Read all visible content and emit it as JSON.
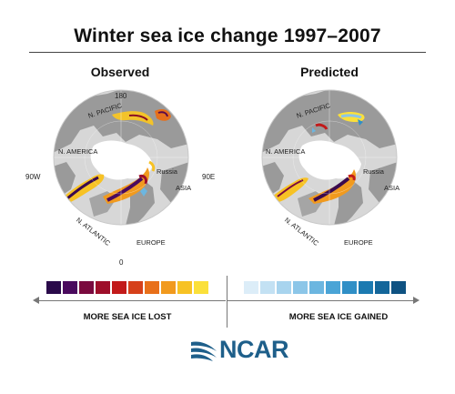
{
  "title": "Winter sea ice change 1997–2007",
  "panels": {
    "observed": {
      "title": "Observed",
      "labels": {
        "top": "180",
        "left": "90W",
        "right": "90E",
        "bottom": "0",
        "n_pacific": "N. PACIFIC",
        "n_america": "N. AMERICA",
        "russia": "Russia",
        "asia": "ASIA",
        "n_atlantic": "N. ATLANTIC",
        "europe": "EUROPE"
      }
    },
    "predicted": {
      "title": "Predicted",
      "labels": {
        "n_pacific": "N. PACIFIC",
        "n_america": "N. AMERICA",
        "russia": "Russia",
        "asia": "ASIA",
        "n_atlantic": "N. ATLANTIC",
        "europe": "EUROPE"
      }
    }
  },
  "legend": {
    "lost_label": "MORE SEA ICE LOST",
    "gained_label": "MORE SEA ICE GAINED",
    "lost_colors": [
      "#2a0a4a",
      "#4a0a5e",
      "#7a0a3e",
      "#9e0f2a",
      "#c21a1a",
      "#d6401a",
      "#e8701a",
      "#f19a1e",
      "#f7c224",
      "#fbe03a"
    ],
    "gained_colors": [
      "#dcedf8",
      "#c3e1f3",
      "#a8d4ee",
      "#8cc6e8",
      "#6cb6e0",
      "#4aa4d6",
      "#2f8fc6",
      "#1c7ab1",
      "#14669a",
      "#0f5282"
    ]
  },
  "logo": {
    "text": "NCAR",
    "color": "#1e5f8a"
  }
}
